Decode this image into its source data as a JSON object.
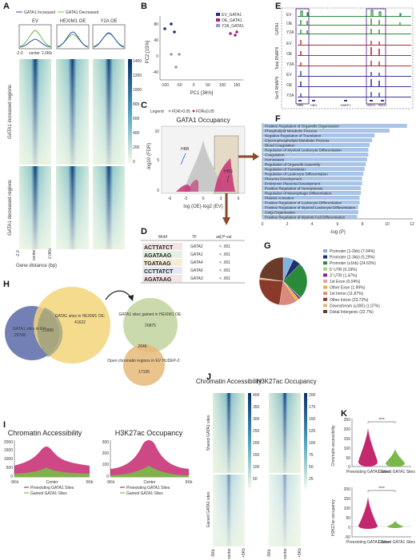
{
  "panels": {
    "A": {
      "label": "A",
      "legend": [
        "GATA1 Increased",
        "GATA1 Decreased"
      ],
      "columns": [
        "EV",
        "HEXIM1 OE",
        "Y2A OE"
      ],
      "profile_x_ticks": [
        "-2.0",
        "center",
        "2.0Kb"
      ],
      "colorbar_ticks": [
        "1400",
        "1200",
        "1000",
        "800",
        "600",
        "400",
        "200",
        "0"
      ],
      "row_labels": [
        "GATA1 increased regions",
        "GATA1 decreased regions"
      ],
      "heatmap_x_ticks": [
        "-2.0",
        "center",
        "2.0Kb"
      ],
      "xlabel": "Gene distance (bp)"
    },
    "B": {
      "label": "B",
      "legend": [
        "EV_GATA1",
        "OE_GATA1",
        "Y2A_GATA1"
      ],
      "xlabel": "PC1 [36%]",
      "ylabel": "PC2 [15%]",
      "x_ticks": [
        "-100",
        "-50",
        "0",
        "50",
        "100",
        "150"
      ],
      "y_ticks": [
        "80",
        "40",
        "0",
        "-40"
      ]
    },
    "C": {
      "label": "C",
      "legend_title": "Legend",
      "legend_items": [
        "FDR>0.05",
        "FDR≤0.05"
      ],
      "title": "GATA1 Occupancy",
      "xlabel": "log (OE)-log2 (EV)",
      "ylabel": "-log10 (FDR)",
      "x_ticks": [
        "-6",
        "-3",
        "0",
        "3",
        "6"
      ],
      "y_ticks": [
        "10",
        "5",
        "0"
      ],
      "annotations": [
        "HBB",
        "HBG"
      ]
    },
    "D": {
      "label": "D",
      "headers": [
        "Motif",
        "TF",
        "adj P-val"
      ],
      "rows": [
        {
          "tf": "GATA2",
          "p": "< .001"
        },
        {
          "tf": "GATA1",
          "p": "< .001"
        },
        {
          "tf": "GATA4",
          "p": "< .001"
        },
        {
          "tf": "GATA6",
          "p": "< .001"
        },
        {
          "tf": "GATA3",
          "p": "< .001"
        }
      ]
    },
    "E": {
      "label": "E",
      "groups": [
        "GATA1",
        "Total RNAPII",
        "Ser5 RNAPII"
      ],
      "tracks": [
        "EV",
        "OE",
        "Y2A",
        "EV",
        "OE",
        "Y2A",
        "EV",
        "OE",
        "Y2A"
      ],
      "genes": [
        "HBB",
        "HBD",
        "HBBP1",
        "HBG1",
        "HBG2"
      ]
    },
    "F": {
      "label": "F",
      "xlabel": "-log (P)",
      "x_ticks": [
        "0",
        "2",
        "4",
        "6",
        "8",
        "10",
        "12"
      ],
      "terms": [
        "Positive Regulation of Organelle Organization",
        "Phospholipid Metabolic Process",
        "Negative Regulation of Translation",
        "Glycerophospholipid Metabolic Process",
        "Blood Coagulation",
        "Regulation of Myeloid Leukocyte Differentiation",
        "Coagulation",
        "Hemostasis",
        "Regulation of Organelle Assembly",
        "Regulation of Translation",
        "Regulation of Leukocyte Differentiation",
        "Placenta Development",
        "Embryonic Placenta Development",
        "Positive Regulation of Hemopoiesis",
        "Regulation of Macrophage Differentiation",
        "Platelet Activation",
        "Positive Regulation of Leukocyte Differentiation",
        "Positive Regulation of Myeloid Leukocyte Differentiation",
        "Golgi Organization",
        "Positive Regulation of Myeloid Cell Differentiation"
      ]
    },
    "G": {
      "label": "G",
      "items": [
        {
          "label": "Promoter (1-2kb) (7.04%)",
          "value": 7.04,
          "color": "#7fb3e0"
        },
        {
          "label": "Promoter (2-3kb) (5.29%)",
          "value": 5.29,
          "color": "#1f2f6e"
        },
        {
          "label": "Promoter (≤1kb) (24.63%)",
          "value": 24.63,
          "color": "#2a8a3a"
        },
        {
          "label": "5' UTR (0.19%)",
          "value": 0.19,
          "color": "#a7d17a"
        },
        {
          "label": "3' UTR (1.47%)",
          "value": 1.47,
          "color": "#7b2c8c"
        },
        {
          "label": "1st Exon (0.04%)",
          "value": 0.04,
          "color": "#e8a0a8"
        },
        {
          "label": "Other Exon (1.99%)",
          "value": 1.99,
          "color": "#e8b23a"
        },
        {
          "label": "1st Intron (11.87%)",
          "value": 11.87,
          "color": "#d98a7a"
        },
        {
          "label": "Other Intron (23.72%)",
          "value": 23.72,
          "color": "#8a3a2a"
        },
        {
          "label": "Downstream (≤300) (1.07%)",
          "value": 1.07,
          "color": "#cfc07a"
        },
        {
          "label": "Distal Intergenic (22.7%)",
          "value": 22.7,
          "color": "#6a3a2a"
        }
      ]
    },
    "H": {
      "label": "H",
      "left_set": "GATA1 sites in EV:",
      "left_value": "25708",
      "overlap": "21899",
      "right_set": "GATA1 sites in HEXIM1 OE:",
      "right_value": "41622",
      "gained_set": "GATA1 sites gained in HEXIM1 OE:",
      "gained_value": "20875",
      "overlap2": "2646",
      "open_set": "Open chromatin regions in EV HUDEP-2:",
      "open_value": "17195"
    },
    "I": {
      "label": "I",
      "plots": [
        {
          "title": "Chromatin Accessibility",
          "y_ticks": [
            "2000",
            "1500",
            "1000",
            "500",
            "0"
          ]
        },
        {
          "title": "H3K27ac Occupancy",
          "y_ticks": [
            "300",
            "200",
            "100",
            "0"
          ]
        }
      ],
      "x_ticks": [
        "-5Kb",
        "Center",
        "5Kb"
      ],
      "legend": [
        "Preexisting GATA1 Sites",
        "Gained GATA1 Sites"
      ]
    },
    "J": {
      "label": "J",
      "titles": [
        "Chromatin Accessibility",
        "H3K27ac Occupancy"
      ],
      "row_labels": [
        "Shared GATA1 sites",
        "Gained GATA1 sites"
      ],
      "colorbar1_ticks": [
        "400",
        "350",
        "300",
        "250",
        "200",
        "150",
        "100",
        "50"
      ],
      "colorbar2_ticks": [
        "200",
        "175",
        "150",
        "125",
        "100",
        "75",
        "50",
        "25"
      ],
      "x_ticks": [
        "-5Kb",
        "center",
        "+5Kb"
      ]
    },
    "K": {
      "label": "K",
      "plots": [
        {
          "ylabel": "Chromatin accessibility",
          "sig": "****",
          "y_ticks": [
            "250",
            "200",
            "150",
            "100",
            "50",
            "0"
          ]
        },
        {
          "ylabel": "H3K27ac occupancy",
          "sig": "****",
          "y_ticks": [
            "200",
            "150",
            "100",
            "50",
            "0",
            "-50"
          ]
        }
      ],
      "categories": [
        "Preexisting GATA1 Sites",
        "Gained GATA1 Sites"
      ]
    }
  },
  "colors": {
    "increased": "#2f4fb0",
    "decreased": "#6fbf4a",
    "magenta": "#c4286e",
    "green": "#7ab84a",
    "bar": "#a9c4e6",
    "violet": "#6e4ea0",
    "heat_dark": "#0a3a7a"
  }
}
